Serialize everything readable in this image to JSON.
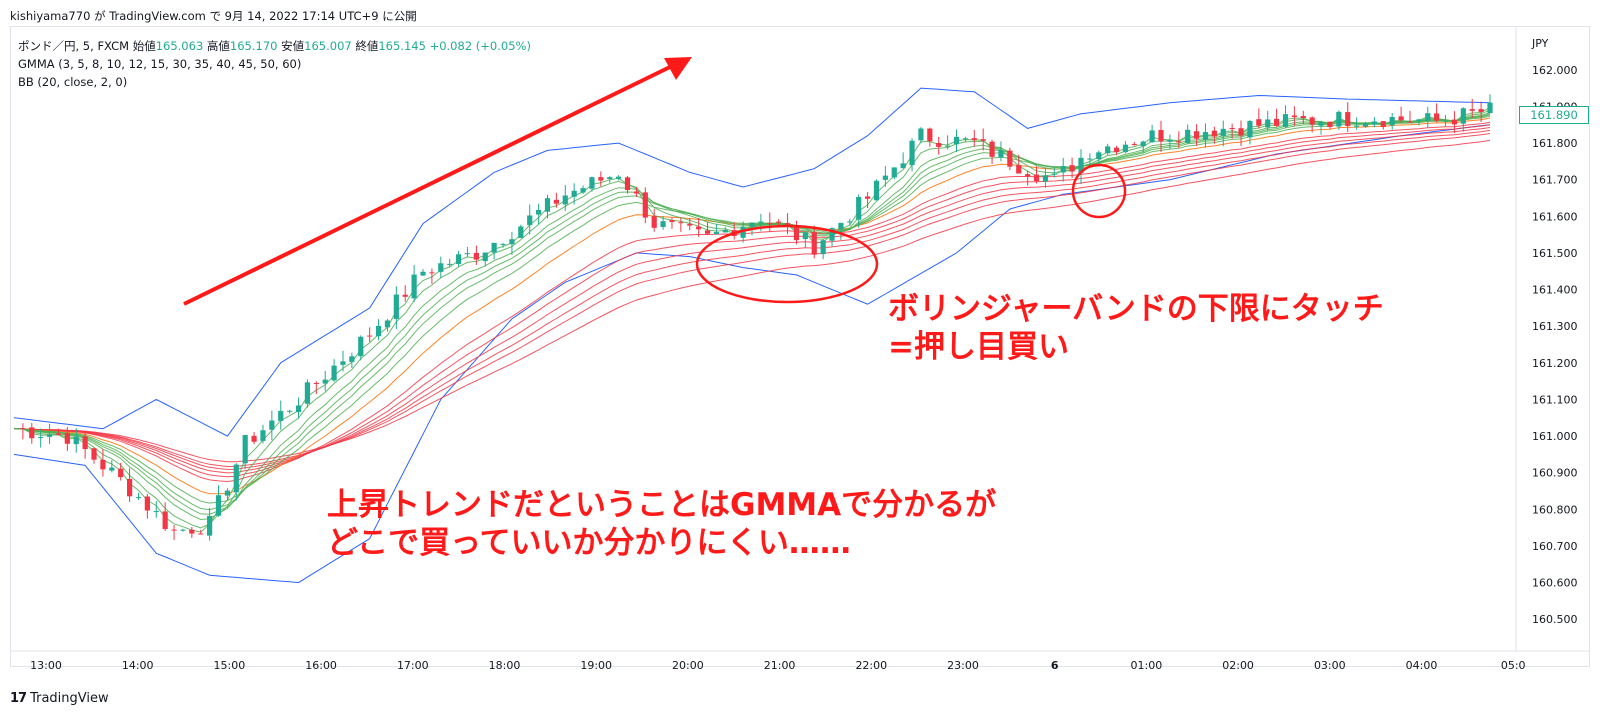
{
  "header": {
    "attribution": "kishiyama770 が TradingView.com で 9月 14, 2022 17:14 UTC+9 に公開"
  },
  "legend": {
    "symbol": "ポンド／円, 5, FXCM",
    "open_label": "始値",
    "open_value": "165.063",
    "high_label": "高値",
    "high_value": "165.170",
    "low_label": "安値",
    "low_value": "165.007",
    "close_label": "終値",
    "close_value": "165.145",
    "change": "+0.082 (+0.05%)",
    "gmma": "GMMA (3, 5, 8, 10, 12, 15, 30, 35, 40, 45, 50, 60)",
    "bb": "BB (20, close, 2, 0)"
  },
  "price_badge": "161.890",
  "footer": {
    "brand": "TradingView",
    "logo": "17"
  },
  "annotations": {
    "bb_touch_line1": "ボリンジャーバンドの下限にタッチ",
    "bb_touch_line2": "=押し目買い",
    "gmma_line1": "上昇トレンドだということはGMMAで分かるが",
    "gmma_line2": "どこで買っていいか分かりにくい……"
  },
  "colors": {
    "up": "#22ab94",
    "down": "#f23645",
    "bb": "#2962ff",
    "gmma_short": "#4caf50",
    "gmma_long": "#f23645",
    "gmma_mid": "#ff6d00",
    "annotation": "#ff1a1a"
  },
  "chart_data": {
    "type": "candlestick",
    "y_axis_unit": "JPY",
    "y_ticks": [
      "162.000",
      "161.900",
      "161.800",
      "161.700",
      "161.600",
      "161.500",
      "161.400",
      "161.300",
      "161.200",
      "161.100",
      "161.000",
      "160.900",
      "160.800",
      "160.700",
      "160.600",
      "160.500"
    ],
    "x_ticks": [
      "13:00",
      "14:00",
      "15:00",
      "16:00",
      "17:00",
      "18:00",
      "19:00",
      "20:00",
      "21:00",
      "22:00",
      "23:00",
      "6",
      "01:00",
      "02:00",
      "03:00",
      "04:00",
      "05:0"
    ],
    "ylim": [
      160.45,
      162.05
    ],
    "trend_close": [
      [
        0,
        161.02
      ],
      [
        6,
        161.0
      ],
      [
        12,
        160.88
      ],
      [
        18,
        160.74
      ],
      [
        22,
        160.76
      ],
      [
        26,
        160.98
      ],
      [
        32,
        161.1
      ],
      [
        40,
        161.28
      ],
      [
        46,
        161.45
      ],
      [
        52,
        161.5
      ],
      [
        56,
        161.56
      ],
      [
        62,
        161.66
      ],
      [
        68,
        161.72
      ],
      [
        72,
        161.58
      ],
      [
        78,
        161.54
      ],
      [
        84,
        161.6
      ],
      [
        90,
        161.52
      ],
      [
        96,
        161.65
      ],
      [
        102,
        161.82
      ],
      [
        108,
        161.8
      ],
      [
        113,
        161.74
      ],
      [
        117,
        161.7
      ],
      [
        121,
        161.78
      ],
      [
        128,
        161.82
      ],
      [
        136,
        161.84
      ],
      [
        144,
        161.86
      ],
      [
        152,
        161.87
      ],
      [
        160,
        161.86
      ],
      [
        166,
        161.89
      ]
    ],
    "bb_upper": [
      [
        0,
        161.05
      ],
      [
        10,
        161.02
      ],
      [
        16,
        161.1
      ],
      [
        24,
        161.0
      ],
      [
        30,
        161.2
      ],
      [
        40,
        161.35
      ],
      [
        46,
        161.58
      ],
      [
        54,
        161.72
      ],
      [
        60,
        161.78
      ],
      [
        68,
        161.8
      ],
      [
        76,
        161.72
      ],
      [
        82,
        161.68
      ],
      [
        90,
        161.73
      ],
      [
        96,
        161.82
      ],
      [
        102,
        161.95
      ],
      [
        108,
        161.94
      ],
      [
        114,
        161.84
      ],
      [
        120,
        161.88
      ],
      [
        130,
        161.91
      ],
      [
        140,
        161.93
      ],
      [
        150,
        161.92
      ],
      [
        166,
        161.91
      ]
    ],
    "bb_lower": [
      [
        0,
        160.95
      ],
      [
        8,
        160.92
      ],
      [
        16,
        160.68
      ],
      [
        22,
        160.62
      ],
      [
        32,
        160.6
      ],
      [
        40,
        160.72
      ],
      [
        48,
        161.1
      ],
      [
        56,
        161.32
      ],
      [
        62,
        161.42
      ],
      [
        70,
        161.5
      ],
      [
        76,
        161.49
      ],
      [
        82,
        161.46
      ],
      [
        88,
        161.44
      ],
      [
        96,
        161.36
      ],
      [
        106,
        161.5
      ],
      [
        112,
        161.62
      ],
      [
        118,
        161.66
      ],
      [
        130,
        161.7
      ],
      [
        142,
        161.77
      ],
      [
        156,
        161.82
      ],
      [
        166,
        161.85
      ]
    ]
  }
}
